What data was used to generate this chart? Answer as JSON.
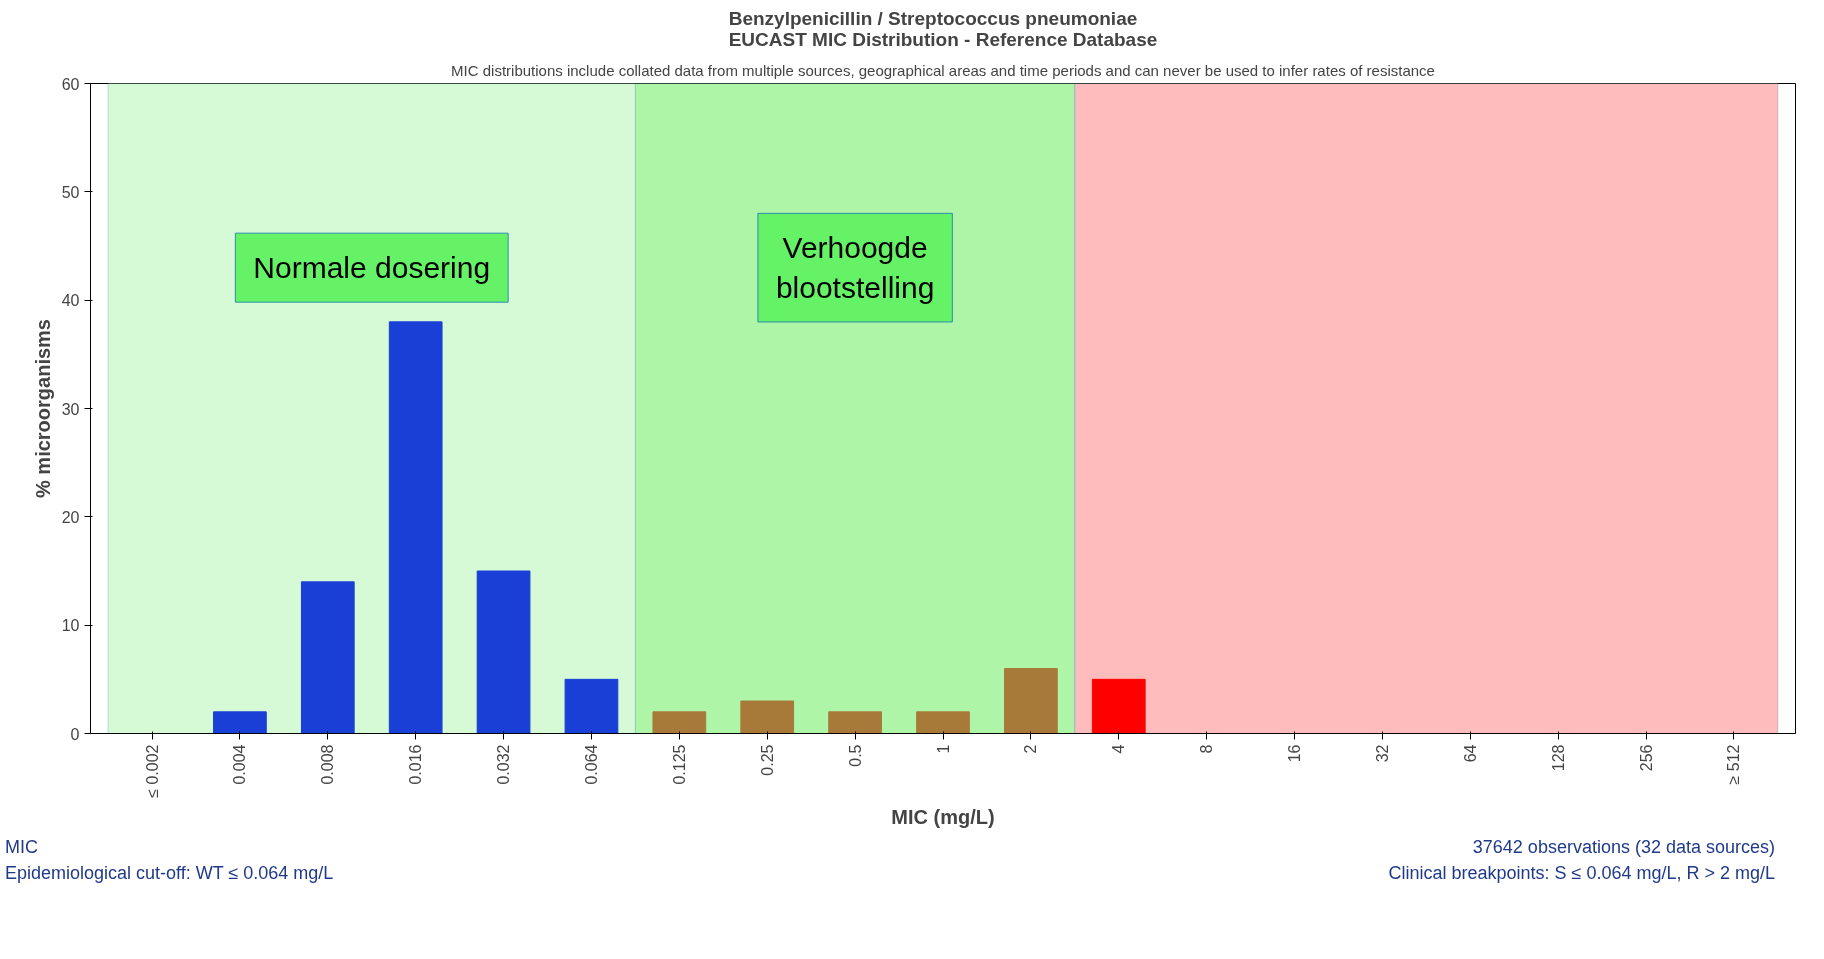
{
  "chart_data": {
    "type": "bar",
    "title": "Benzylpenicillin / Streptococcus pneumoniae\nEUCAST MIC Distribution - Reference Database",
    "subtitle": "MIC distributions include collated data from multiple sources, geographical areas and time periods and can never be used to infer rates of resistance",
    "xlabel": "MIC (mg/L)",
    "ylabel": "% microorganisms",
    "categories": [
      "≤ 0.002",
      "0.004",
      "0.008",
      "0.016",
      "0.032",
      "0.064",
      "0.125",
      "0.25",
      "0.5",
      "1",
      "2",
      "4",
      "8",
      "16",
      "32",
      "64",
      "128",
      "256",
      "≥ 512"
    ],
    "values": [
      0,
      2,
      14,
      38,
      15,
      5,
      2,
      3,
      2,
      2,
      6,
      5,
      0,
      0,
      0,
      0,
      0,
      0,
      0
    ],
    "colors": [
      "#1a3fd6",
      "#1a3fd6",
      "#1a3fd6",
      "#1a3fd6",
      "#1a3fd6",
      "#1a3fd6",
      "#a87a3a",
      "#a87a3a",
      "#a87a3a",
      "#a87a3a",
      "#a87a3a",
      "#ff0000",
      "#ff0000",
      "#ff0000",
      "#ff0000",
      "#ff0000",
      "#ff0000",
      "#ff0000",
      "#ff0000"
    ],
    "ylim": [
      0,
      60
    ],
    "yticks": [
      0,
      10,
      20,
      30,
      40,
      50,
      60
    ],
    "grid": false,
    "bands": [
      {
        "axis": "x",
        "from": "≤ 0.002",
        "to": "0.064",
        "label": "Normale dosering",
        "color": "#d6fad6"
      },
      {
        "axis": "x",
        "from": "0.125",
        "to": "2",
        "label": "Verhoogde\nblootstelling",
        "color": "#aef5a8"
      },
      {
        "axis": "x",
        "from": "4",
        "to": "≥ 512",
        "label": null,
        "color": "#ffbcbc"
      }
    ],
    "annotations": [
      "MIC",
      "Epidemiological cut-off: WT ≤ 0.064 mg/L",
      "37642 observations (32 data sources)",
      "Clinical breakpoints: S ≤ 0.064 mg/L, R > 2 mg/L"
    ]
  }
}
